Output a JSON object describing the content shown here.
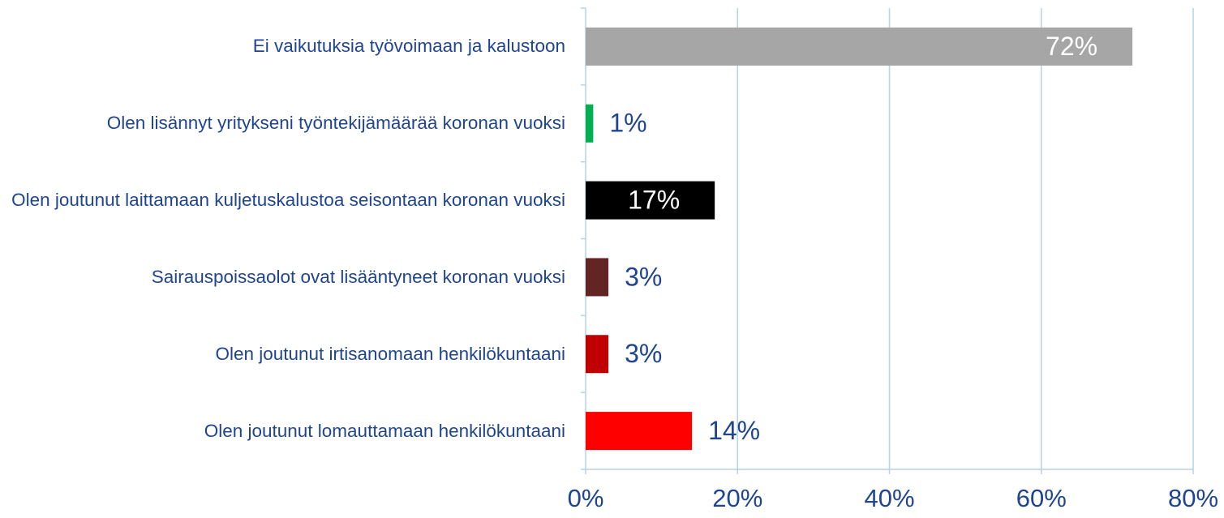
{
  "chart_data": {
    "type": "barh",
    "categories": [
      "Ei vaikutuksia työvoimaan ja kalustoon",
      "Olen lisännyt yritykseni työntekijämäärää koronan vuoksi",
      "Olen joutunut laittamaan kuljetuskalustoa seisontaan koronan vuoksi",
      "Sairauspoissaolot ovat lisääntyneet koronan vuoksi",
      "Olen joutunut irtisanomaan henkilökuntaani",
      "Olen joutunut lomauttamaan henkilökuntaani"
    ],
    "values": [
      72,
      1,
      17,
      3,
      3,
      14
    ],
    "value_labels": [
      "72%",
      "1%",
      "17%",
      "3%",
      "3%",
      "14%"
    ],
    "colors": [
      "#a6a6a6",
      "#00b050",
      "#000000",
      "#632523",
      "#c00000",
      "#ff0000"
    ],
    "inside_labels": [
      true,
      false,
      true,
      false,
      false,
      false
    ],
    "xlim": [
      0,
      80
    ],
    "xticks": [
      {
        "value": 0,
        "label": "0%"
      },
      {
        "value": 20,
        "label": "20%"
      },
      {
        "value": 40,
        "label": "40%"
      },
      {
        "value": 60,
        "label": "60%"
      },
      {
        "value": 80,
        "label": "80%"
      }
    ],
    "grid": true
  }
}
